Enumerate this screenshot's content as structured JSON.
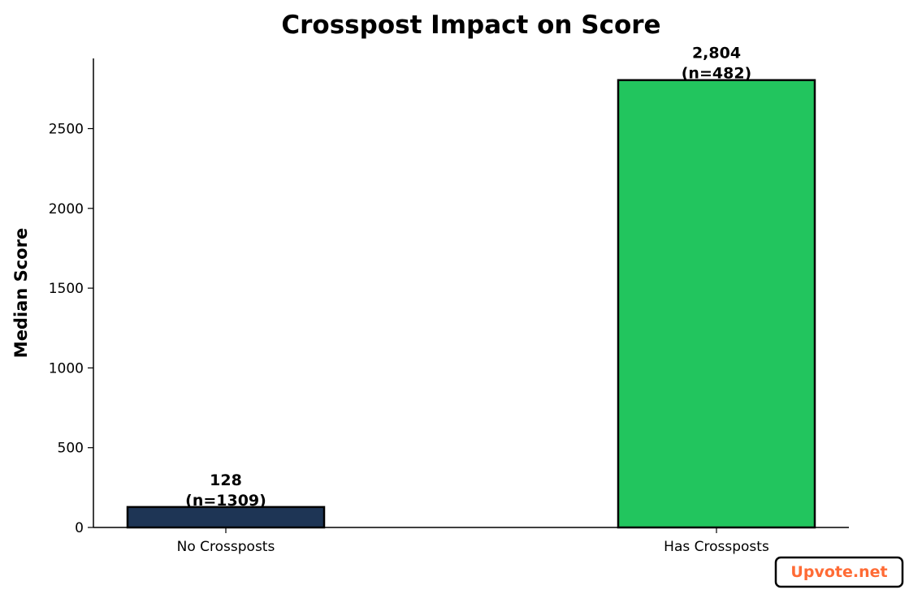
{
  "chart_data": {
    "type": "bar",
    "title": "Crosspost Impact on Score",
    "xlabel": "",
    "ylabel": "Median Score",
    "categories": [
      "No Crossposts",
      "Has Crossposts"
    ],
    "values": [
      128,
      2804
    ],
    "counts": [
      "(n=1309)",
      "(n=482)"
    ],
    "value_labels": [
      "128",
      "2,804"
    ],
    "colors": [
      "#1e3555",
      "#22c55e"
    ],
    "ylim": [
      0,
      2940
    ],
    "yticks": [
      0,
      500,
      1000,
      1500,
      2000,
      2500
    ],
    "grid": false
  },
  "watermark": {
    "text": "Upvote.net",
    "color": "#ff6b35"
  }
}
